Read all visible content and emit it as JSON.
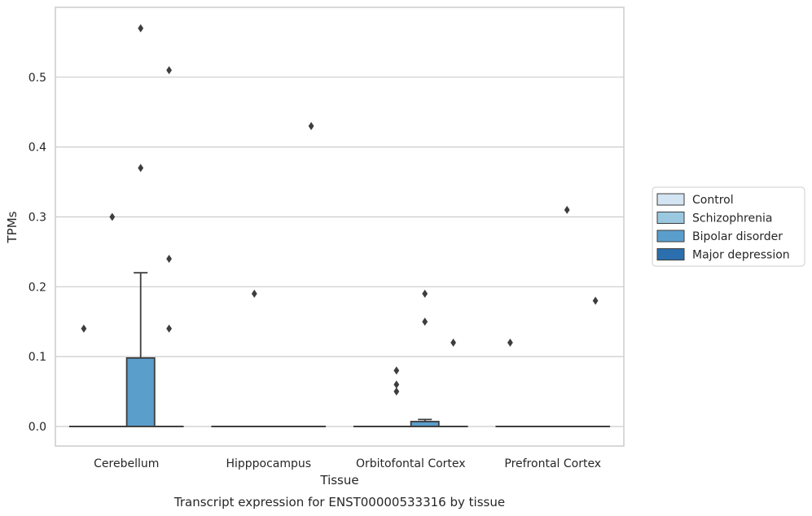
{
  "chart_data": {
    "type": "box",
    "caption": "Transcript expression for ENST00000533316 by tissue",
    "xlabel": "Tissue",
    "ylabel": "TPMs",
    "ylim": [
      -0.028,
      0.6
    ],
    "yticks": [
      "0.0",
      "0.1",
      "0.2",
      "0.3",
      "0.4",
      "0.5"
    ],
    "grid": true,
    "legend_position": "right",
    "categories": [
      "Cerebellum",
      "Hipppocampus",
      "Orbitofontal Cortex",
      "Prefrontal Cortex"
    ],
    "series": [
      {
        "name": "Control",
        "color": "#d3e4f3",
        "boxes": [
          {
            "q1": 0,
            "median": 0,
            "q3": 0,
            "whisker_low": 0,
            "whisker_high": 0,
            "outliers": [
              0.14
            ]
          },
          {
            "q1": 0,
            "median": 0,
            "q3": 0,
            "whisker_low": 0,
            "whisker_high": 0,
            "outliers": []
          },
          {
            "q1": 0,
            "median": 0,
            "q3": 0,
            "whisker_low": 0,
            "whisker_high": 0,
            "outliers": []
          },
          {
            "q1": 0,
            "median": 0,
            "q3": 0,
            "whisker_low": 0,
            "whisker_high": 0,
            "outliers": [
              0.12
            ]
          }
        ]
      },
      {
        "name": "Schizophrenia",
        "color": "#9ac8e0",
        "boxes": [
          {
            "q1": 0,
            "median": 0,
            "q3": 0,
            "whisker_low": 0,
            "whisker_high": 0,
            "outliers": [
              0.3
            ]
          },
          {
            "q1": 0,
            "median": 0,
            "q3": 0,
            "whisker_low": 0,
            "whisker_high": 0,
            "outliers": [
              0.19
            ]
          },
          {
            "q1": 0,
            "median": 0,
            "q3": 0,
            "whisker_low": 0,
            "whisker_high": 0,
            "outliers": [
              0.08,
              0.06,
              0.05
            ]
          },
          {
            "q1": 0,
            "median": 0,
            "q3": 0,
            "whisker_low": 0,
            "whisker_high": 0,
            "outliers": []
          }
        ]
      },
      {
        "name": "Bipolar disorder",
        "color": "#5a9ecc",
        "boxes": [
          {
            "q1": 0,
            "median": 0,
            "q3": 0.098,
            "whisker_low": 0,
            "whisker_high": 0.22,
            "outliers": [
              0.57,
              0.37
            ]
          },
          {
            "q1": 0,
            "median": 0,
            "q3": 0,
            "whisker_low": 0,
            "whisker_high": 0,
            "outliers": []
          },
          {
            "q1": 0,
            "median": 0,
            "q3": 0.007,
            "whisker_low": 0,
            "whisker_high": 0.01,
            "outliers": [
              0.19,
              0.15
            ]
          },
          {
            "q1": 0,
            "median": 0,
            "q3": 0,
            "whisker_low": 0,
            "whisker_high": 0,
            "outliers": [
              0.31
            ]
          }
        ]
      },
      {
        "name": "Major depression",
        "color": "#2c6fae",
        "boxes": [
          {
            "q1": 0,
            "median": 0,
            "q3": 0,
            "whisker_low": 0,
            "whisker_high": 0,
            "outliers": [
              0.51,
              0.24,
              0.14
            ]
          },
          {
            "q1": 0,
            "median": 0,
            "q3": 0,
            "whisker_low": 0,
            "whisker_high": 0,
            "outliers": [
              0.43
            ]
          },
          {
            "q1": 0,
            "median": 0,
            "q3": 0,
            "whisker_low": 0,
            "whisker_high": 0,
            "outliers": [
              0.12
            ]
          },
          {
            "q1": 0,
            "median": 0,
            "q3": 0,
            "whisker_low": 0,
            "whisker_high": 0,
            "outliers": [
              0.18
            ]
          }
        ]
      }
    ]
  }
}
